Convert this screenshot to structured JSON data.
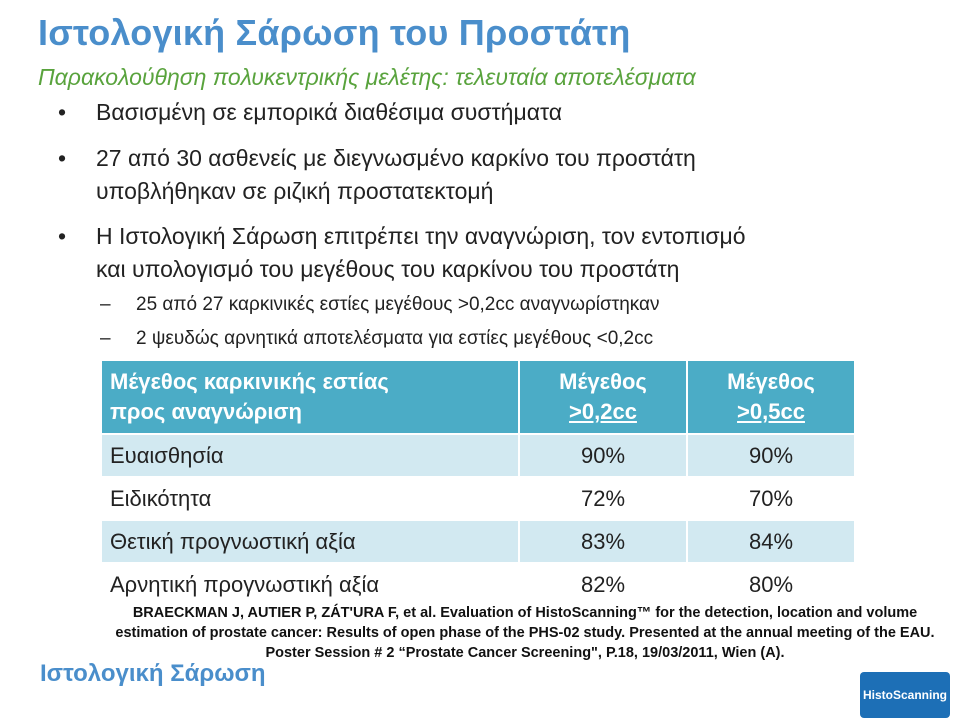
{
  "title": "Ιστολογική Σάρωση του Προστάτη",
  "subtitle": "Παρακολούθηση πολυκεντρικής μελέτης: τελευταία αποτελέσματα",
  "bullets": [
    {
      "lines": [
        "Βασισμένη σε εμπορικά διαθέσιμα συστήματα"
      ]
    },
    {
      "lines": [
        "27 από 30 ασθενείς με διεγνωσμένο καρκίνο του προστάτη",
        "υποβλήθηκαν σε ριζική προστατεκτομή"
      ]
    },
    {
      "lines": [
        "Η Ιστολογική Σάρωση επιτρέπει την αναγνώριση, τον εντοπισμό",
        "και υπολογισμό του μεγέθους του καρκίνου του προστάτη"
      ]
    }
  ],
  "subbullets": [
    "25 από 27 καρκινικές εστίες μεγέθους >0,2cc αναγνωρίστηκαν",
    "2 ψευδώς αρνητικά αποτελέσματα για εστίες μεγέθους <0,2cc"
  ],
  "table": {
    "header": {
      "col1_line1": "Μέγεθος καρκινικής εστίας",
      "col1_line2": "προς αναγνώριση",
      "col2_line1": "Μέγεθος",
      "col2_line2": ">0,2cc",
      "col3_line1": "Μέγεθος",
      "col3_line2": ">0,5cc"
    },
    "rows": [
      {
        "label": "Ευαισθησία",
        "v1": "90%",
        "v2": "90%"
      },
      {
        "label": "Ειδικότητα",
        "v1": "72%",
        "v2": "70%"
      },
      {
        "label": "Θετική προγνωστική αξία",
        "v1": "83%",
        "v2": "84%"
      },
      {
        "label": "Αρνητική προγνωστική αξία",
        "v1": "82%",
        "v2": "80%"
      }
    ]
  },
  "reference": {
    "line1": "BRAECKMAN J, AUTIER P, ZÁT'URA F, et al. Evaluation of HistoScanning™ for the detection, location and volume",
    "line2": "estimation of prostate cancer: Results of open phase of the PHS-02 study. Presented at the annual meeting of the EAU.",
    "line3": "Poster Session # 2 “Prostate Cancer Screening\", P.18, 19/03/2011, Wien (A)."
  },
  "footer": {
    "brand": "Ιστολογική Σάρωση",
    "logo_text": "HistoScanning"
  }
}
